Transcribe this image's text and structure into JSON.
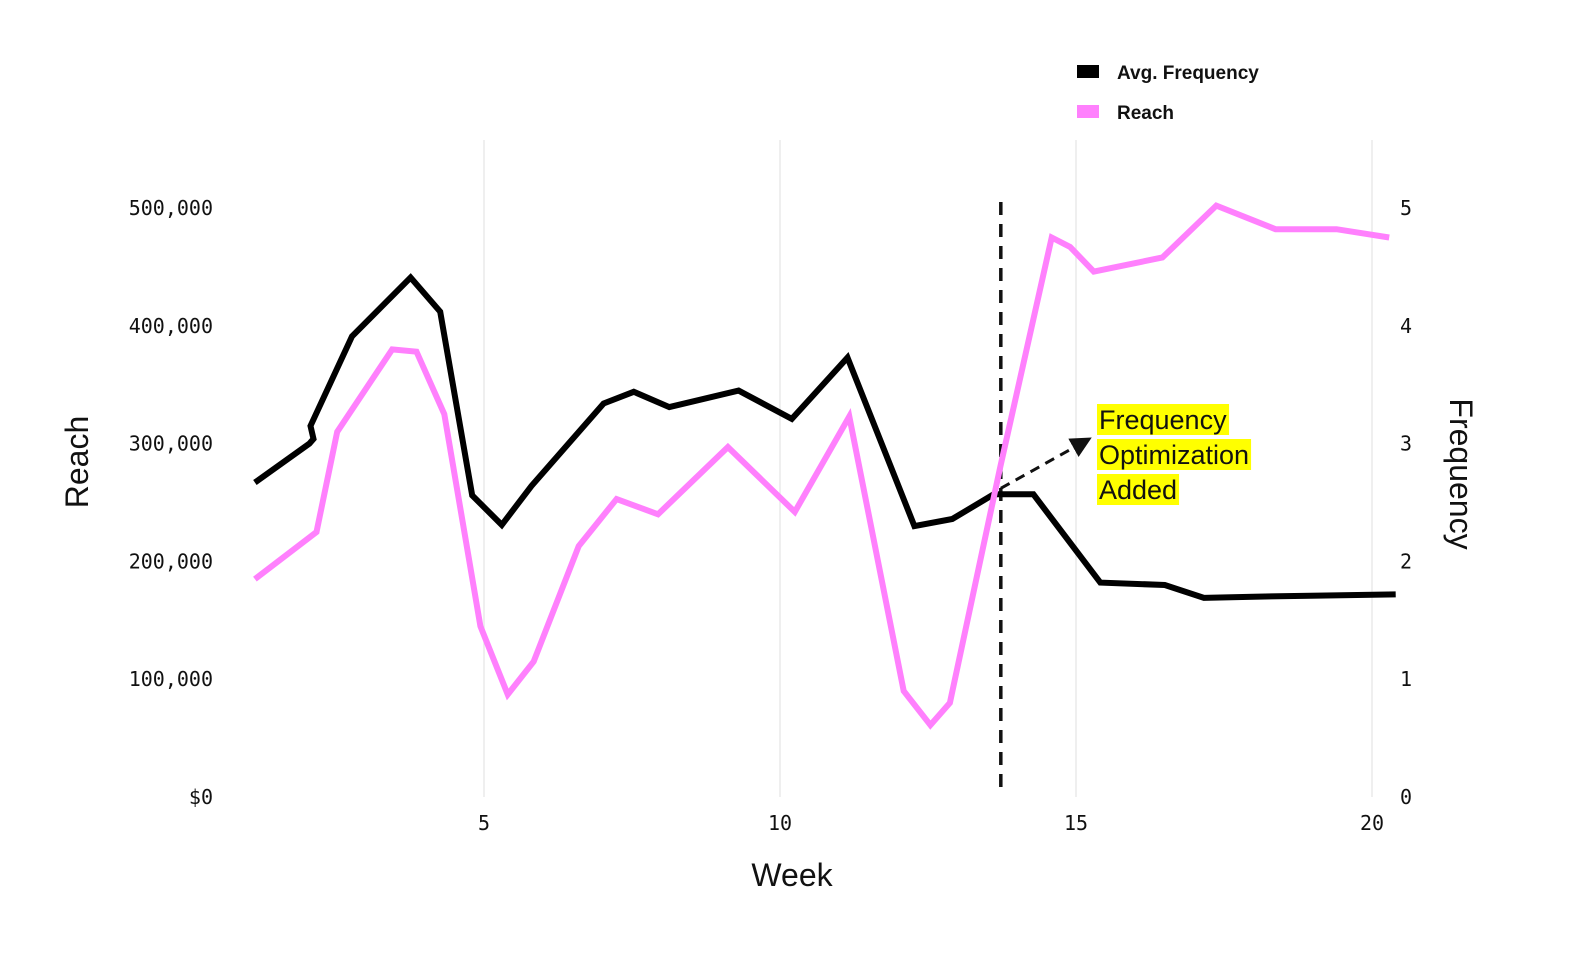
{
  "chart_data": {
    "type": "line",
    "title": "",
    "xlabel": "Week",
    "ylabel": "Reach",
    "y2label": "Frequency",
    "xlim": [
      1.05,
      20.3
    ],
    "ylim": [
      0,
      500000
    ],
    "y2lim": [
      0,
      5
    ],
    "x_ticks": [
      5,
      10,
      15,
      20
    ],
    "x_tick_labels": [
      "5",
      "10",
      "15",
      "20"
    ],
    "y_ticks": [
      0,
      100000,
      200000,
      300000,
      400000,
      500000
    ],
    "y_tick_labels": [
      "$0",
      "100,000",
      "200,000",
      "300,000",
      "400,000",
      "500,000"
    ],
    "y2_ticks": [
      0,
      1,
      2,
      3,
      4,
      5
    ],
    "y2_tick_labels": [
      "0",
      "1",
      "2",
      "3",
      "4",
      "5"
    ],
    "grid": "vertical",
    "legend_position": "top-right",
    "series": [
      {
        "name": "Avg. Frequency",
        "axis": "right",
        "color": "#000000",
        "x": [
          1.13,
          2.05,
          2.12,
          2.07,
          2.77,
          3.76,
          4.26,
          4.8,
          5.3,
          5.8,
          7.02,
          7.53,
          8.13,
          9.3,
          10.2,
          11.14,
          12.27,
          12.91,
          13.61,
          14.28,
          15.41,
          16.5,
          17.16,
          18.0,
          19.1,
          20.4
        ],
        "values": [
          2.67,
          3.0,
          3.04,
          3.15,
          3.91,
          4.41,
          4.12,
          2.56,
          2.31,
          2.64,
          3.34,
          3.44,
          3.31,
          3.45,
          3.21,
          3.73,
          2.3,
          2.36,
          2.57,
          2.57,
          1.82,
          1.8,
          1.69,
          1.7,
          1.71,
          1.72
        ]
      },
      {
        "name": "Reach",
        "axis": "left",
        "color": "#ff80fd",
        "x": [
          1.13,
          2.17,
          2.52,
          3.45,
          3.86,
          4.33,
          4.94,
          5.4,
          5.84,
          6.6,
          7.24,
          7.94,
          9.12,
          10.25,
          11.17,
          12.09,
          12.54,
          12.87,
          13.72,
          14.59,
          14.9,
          15.3,
          16.46,
          17.37,
          18.37,
          19.4,
          20.29
        ],
        "values": [
          185000,
          225000,
          310000,
          380000,
          378000,
          325000,
          145000,
          87000,
          115000,
          213000,
          253000,
          240000,
          297000,
          242000,
          323000,
          90000,
          61000,
          80000,
          280000,
          475000,
          467000,
          446000,
          458000,
          502000,
          482000,
          482000,
          475000
        ]
      }
    ],
    "annotations": [
      {
        "type": "vertical-dashed-line",
        "x": 13.73,
        "color": "#111111"
      },
      {
        "type": "text-with-arrow",
        "lines": [
          "Frequency",
          "Optimization",
          "Added"
        ],
        "highlight_color": "#ffff00",
        "arrow_from": [
          13.73,
          2.62
        ],
        "arrow_to": [
          14.9,
          3.0
        ]
      }
    ]
  }
}
